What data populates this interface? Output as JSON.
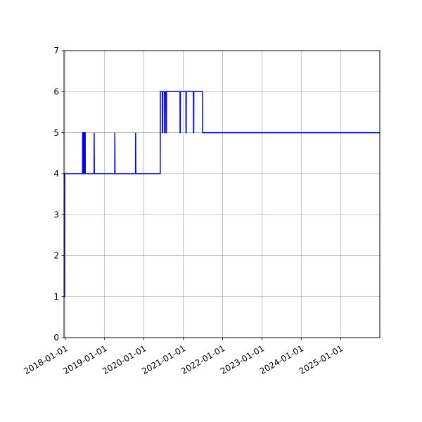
{
  "chart_data": {
    "type": "line",
    "title": "",
    "xlabel": "",
    "ylabel": "",
    "x_axis_type": "date",
    "xlim": [
      "2017-12-20",
      "2025-12-31"
    ],
    "ylim": [
      0,
      7
    ],
    "grid": true,
    "legend": "none",
    "colors": {
      "line": "#0000ff",
      "grid": "#b0b0b0",
      "axes": "#000000",
      "background": "#ffffff"
    },
    "x_ticks": [
      "2018-01-01",
      "2019-01-01",
      "2020-01-01",
      "2021-01-01",
      "2022-01-01",
      "2023-01-01",
      "2024-01-01",
      "2025-01-01"
    ],
    "x_tick_labels": [
      "2018-01-01",
      "2019-01-01",
      "2020-01-01",
      "2021-01-01",
      "2022-01-01",
      "2023-01-01",
      "2024-01-01",
      "2025-01-01"
    ],
    "y_ticks": [
      0,
      1,
      2,
      3,
      4,
      5,
      6,
      7
    ],
    "y_tick_labels": [
      "0",
      "1",
      "2",
      "3",
      "4",
      "5",
      "6",
      "7"
    ],
    "series": [
      {
        "color": "#0000ff",
        "points": [
          [
            "2017-12-22",
            1
          ],
          [
            "2017-12-24",
            1
          ],
          [
            "2017-12-25",
            4
          ],
          [
            "2018-06-10",
            4
          ],
          [
            "2018-06-11",
            5
          ],
          [
            "2018-06-14",
            5
          ],
          [
            "2018-06-15",
            4
          ],
          [
            "2018-06-20",
            4
          ],
          [
            "2018-06-21",
            5
          ],
          [
            "2018-06-24",
            5
          ],
          [
            "2018-06-25",
            4
          ],
          [
            "2018-07-01",
            4
          ],
          [
            "2018-07-02",
            5
          ],
          [
            "2018-07-05",
            5
          ],
          [
            "2018-07-06",
            4
          ],
          [
            "2018-09-25",
            4
          ],
          [
            "2018-09-26",
            5
          ],
          [
            "2018-09-28",
            4
          ],
          [
            "2019-04-05",
            4
          ],
          [
            "2019-04-06",
            5
          ],
          [
            "2019-04-08",
            4
          ],
          [
            "2019-10-15",
            4
          ],
          [
            "2019-10-16",
            5
          ],
          [
            "2019-10-18",
            4
          ],
          [
            "2020-06-01",
            4
          ],
          [
            "2020-06-02",
            6
          ],
          [
            "2020-06-20",
            6
          ],
          [
            "2020-06-21",
            5
          ],
          [
            "2020-06-24",
            5
          ],
          [
            "2020-06-25",
            6
          ],
          [
            "2020-07-10",
            6
          ],
          [
            "2020-07-11",
            5
          ],
          [
            "2020-07-14",
            5
          ],
          [
            "2020-07-15",
            6
          ],
          [
            "2020-07-25",
            6
          ],
          [
            "2020-07-26",
            5
          ],
          [
            "2020-07-28",
            5
          ],
          [
            "2020-07-29",
            6
          ],
          [
            "2020-12-01",
            6
          ],
          [
            "2020-12-02",
            5
          ],
          [
            "2020-12-04",
            5
          ],
          [
            "2020-12-05",
            6
          ],
          [
            "2021-01-25",
            6
          ],
          [
            "2021-01-26",
            5
          ],
          [
            "2021-01-28",
            5
          ],
          [
            "2021-01-29",
            6
          ],
          [
            "2021-04-05",
            6
          ],
          [
            "2021-04-06",
            5
          ],
          [
            "2021-04-08",
            5
          ],
          [
            "2021-04-09",
            6
          ],
          [
            "2021-06-28",
            6
          ],
          [
            "2021-06-29",
            5
          ],
          [
            "2025-12-31",
            5
          ]
        ]
      }
    ]
  }
}
